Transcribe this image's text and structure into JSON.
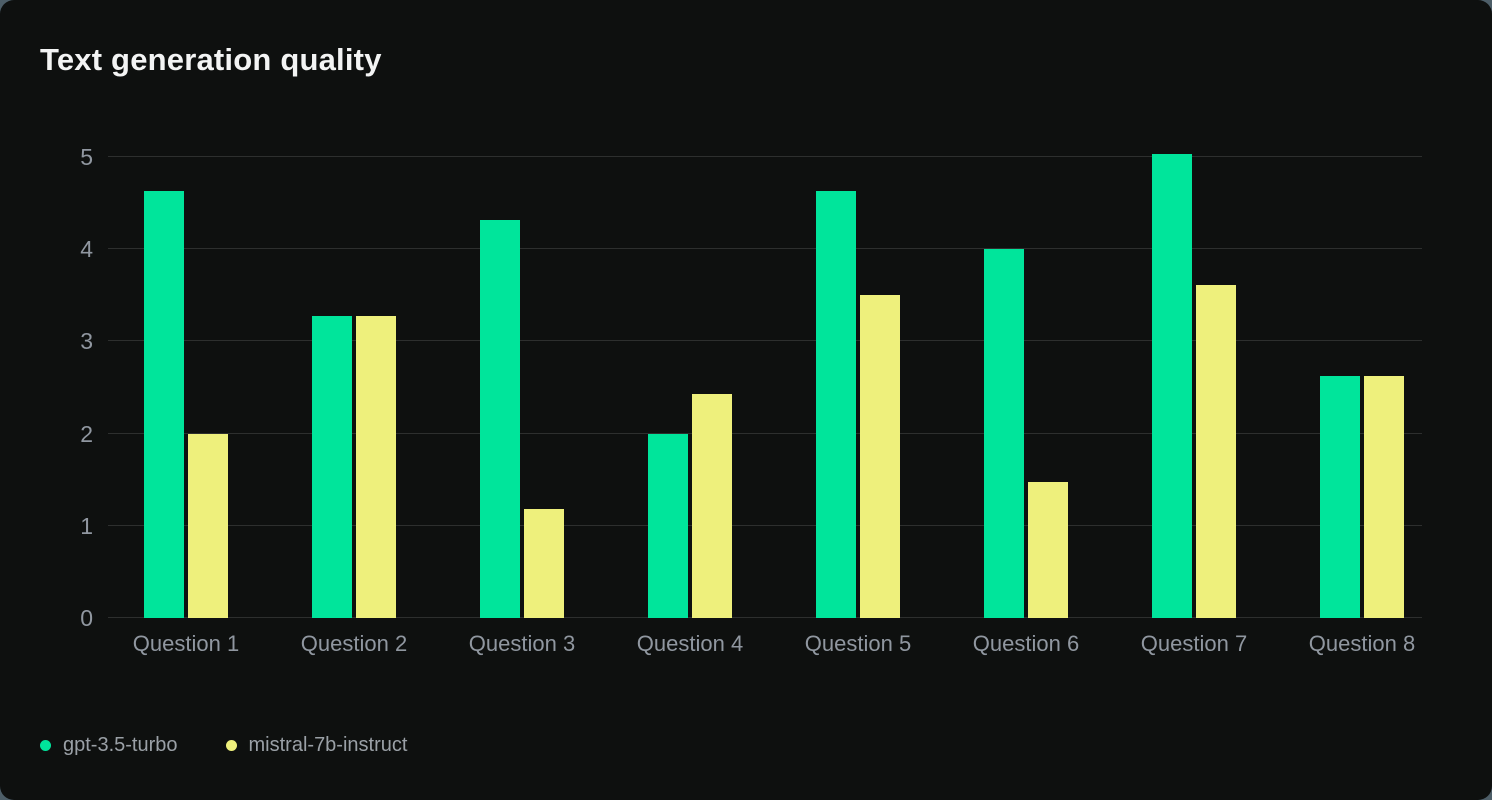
{
  "card": {
    "title": "Text generation quality"
  },
  "colors": {
    "page_background": "#4d5e68",
    "card_background": "#0e100f",
    "gridline": "#2d2f2e",
    "title_text": "#f3f4f4",
    "axis_text": "#9097a0",
    "legend_text": "#9aa0a6",
    "series_green": "#00e59b",
    "series_yellow": "#eef07c"
  },
  "chart_data": {
    "type": "bar",
    "title": "Text generation quality",
    "categories": [
      "Question 1",
      "Question 2",
      "Question 3",
      "Question 4",
      "Question 5",
      "Question 6",
      "Question 7",
      "Question 8"
    ],
    "series": [
      {
        "name": "gpt-3.5-turbo",
        "color": "#00e59b",
        "values": [
          4.63,
          3.28,
          4.32,
          2.0,
          4.63,
          4.0,
          5.03,
          2.63
        ]
      },
      {
        "name": "mistral-7b-instruct",
        "color": "#eef07c",
        "values": [
          2.0,
          3.28,
          1.18,
          2.43,
          3.5,
          1.47,
          3.61,
          2.63
        ]
      }
    ],
    "xlabel": "",
    "ylabel": "",
    "ylim": [
      0,
      5
    ],
    "yticks": [
      0,
      1,
      2,
      3,
      4,
      5
    ],
    "grid": true,
    "legend_position": "bottom-left"
  }
}
